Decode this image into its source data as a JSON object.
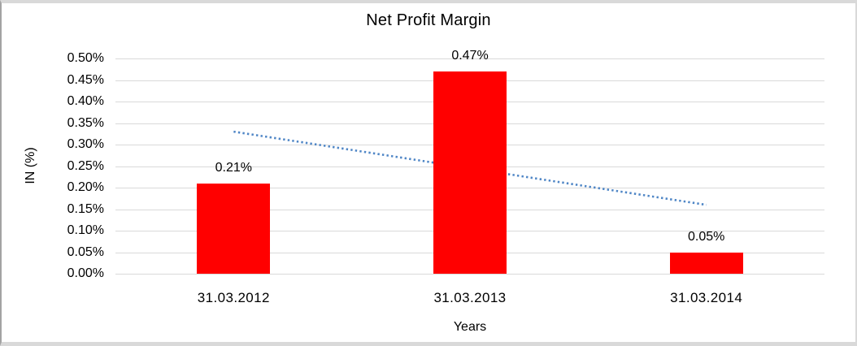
{
  "chart": {
    "bar_color": "#ff0000",
    "trendline_color": "#4f86c6",
    "gridline_color": "#d9d9d9",
    "text_color": "#000000",
    "frame_border_color": "#d9d9d9"
  },
  "chart_data": {
    "type": "bar",
    "title": "Net Profit Margin",
    "xlabel": "Years",
    "ylabel": "IN (%)",
    "categories": [
      "31.03.2012",
      "31.03.2013",
      "31.03.2014"
    ],
    "values": [
      0.21,
      0.47,
      0.05
    ],
    "data_labels": [
      "0.21%",
      "0.47%",
      "0.05%"
    ],
    "ylim": [
      0,
      0.5
    ],
    "ytick_step": 0.05,
    "ytick_labels": [
      "0.00%",
      "0.05%",
      "0.10%",
      "0.15%",
      "0.20%",
      "0.25%",
      "0.30%",
      "0.35%",
      "0.40%",
      "0.45%",
      "0.50%"
    ],
    "grid": true,
    "legend": false,
    "trendline": {
      "style": "dotted",
      "start_value": 0.33,
      "end_value": 0.16
    }
  }
}
